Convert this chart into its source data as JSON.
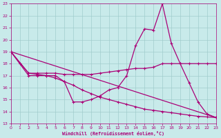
{
  "xlabel": "Windchill (Refroidissement éolien,°C)",
  "xlim": [
    0,
    23
  ],
  "ylim": [
    13,
    23
  ],
  "xticks": [
    0,
    1,
    2,
    3,
    4,
    5,
    6,
    7,
    8,
    9,
    10,
    11,
    12,
    13,
    14,
    15,
    16,
    17,
    18,
    19,
    20,
    21,
    22,
    23
  ],
  "yticks": [
    13,
    14,
    15,
    16,
    17,
    18,
    19,
    20,
    21,
    22,
    23
  ],
  "bg_color": "#c8eaea",
  "grid_color": "#a0cccc",
  "line_color": "#aa0077",
  "series": [
    {
      "x": [
        0,
        1,
        2,
        3,
        4,
        5,
        6,
        7,
        8,
        9,
        10,
        11,
        12,
        13,
        14,
        15,
        16,
        17,
        18,
        19,
        20,
        21,
        22,
        23
      ],
      "y": [
        19,
        18,
        17,
        17,
        17,
        17,
        16.5,
        14.8,
        14.8,
        15.0,
        15.3,
        15.8,
        16.0,
        17.0,
        19.5,
        20.9,
        20.8,
        23.0,
        19.7,
        18.0,
        16.4,
        14.8,
        13.8,
        13.5
      ]
    },
    {
      "x": [
        0,
        2,
        3,
        4,
        5,
        6,
        7,
        8,
        9,
        10,
        11,
        12,
        13,
        14,
        15,
        16,
        17,
        18,
        19,
        20,
        21,
        22,
        23
      ],
      "y": [
        19,
        17.2,
        17.2,
        17.2,
        17.2,
        17.1,
        17.1,
        17.1,
        17.1,
        17.2,
        17.3,
        17.4,
        17.5,
        17.6,
        17.6,
        17.7,
        18.0,
        18.0,
        18.0,
        18.0,
        18.0,
        18.0,
        18.0
      ]
    },
    {
      "x": [
        0,
        23
      ],
      "y": [
        19,
        13.5
      ]
    },
    {
      "x": [
        0,
        2,
        3,
        4,
        5,
        6,
        7,
        8,
        9,
        10,
        11,
        12,
        13,
        14,
        15,
        16,
        17,
        18,
        19,
        20,
        21,
        22,
        23
      ],
      "y": [
        19,
        17.2,
        17.1,
        17.0,
        16.8,
        16.5,
        16.2,
        15.8,
        15.5,
        15.2,
        15.0,
        14.8,
        14.6,
        14.4,
        14.2,
        14.1,
        14.0,
        13.9,
        13.8,
        13.7,
        13.6,
        13.55,
        13.5
      ]
    }
  ]
}
